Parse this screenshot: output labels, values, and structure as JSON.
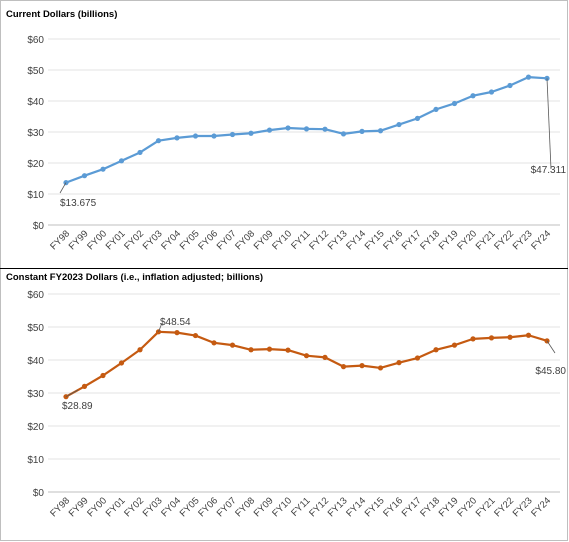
{
  "chart_data": [
    {
      "type": "line",
      "title": "Current Dollars (billions)",
      "categories": [
        "FY98",
        "FY99",
        "FY00",
        "FY01",
        "FY02",
        "FY03",
        "FY04",
        "FY05",
        "FY06",
        "FY07",
        "FY08",
        "FY09",
        "FY10",
        "FY11",
        "FY12",
        "FY13",
        "FY14",
        "FY15",
        "FY16",
        "FY17",
        "FY18",
        "FY19",
        "FY20",
        "FY21",
        "FY22",
        "FY23",
        "FY24"
      ],
      "series": [
        {
          "values": [
            13.675,
            15.9,
            18.0,
            20.7,
            23.4,
            27.2,
            28.1,
            28.7,
            28.7,
            29.2,
            29.6,
            30.6,
            31.3,
            31.0,
            30.9,
            29.4,
            30.2,
            30.4,
            32.4,
            34.4,
            37.3,
            39.2,
            41.7,
            42.9,
            45.0,
            47.7,
            47.311
          ],
          "color": "#5b9bd5"
        }
      ],
      "ylim": [
        0,
        60
      ],
      "yticks": [
        "$0",
        "$10",
        "$20",
        "$30",
        "$40",
        "$50",
        "$60"
      ],
      "grid": true,
      "annotations": [
        {
          "label": "$13.675",
          "index": 0
        },
        {
          "label": "$47.311",
          "index": 26
        }
      ]
    },
    {
      "type": "line",
      "title": "Constant FY2023 Dollars (i.e., inflation adjusted; billions)",
      "categories": [
        "FY98",
        "FY99",
        "FY00",
        "FY01",
        "FY02",
        "FY03",
        "FY04",
        "FY05",
        "FY06",
        "FY07",
        "FY08",
        "FY09",
        "FY10",
        "FY11",
        "FY12",
        "FY13",
        "FY14",
        "FY15",
        "FY16",
        "FY17",
        "FY18",
        "FY19",
        "FY20",
        "FY21",
        "FY22",
        "FY23",
        "FY24"
      ],
      "series": [
        {
          "values": [
            28.89,
            32.0,
            35.3,
            39.1,
            43.1,
            48.54,
            48.3,
            47.4,
            45.2,
            44.5,
            43.1,
            43.3,
            43.0,
            41.3,
            40.8,
            38.0,
            38.3,
            37.6,
            39.2,
            40.6,
            43.1,
            44.5,
            46.4,
            46.7,
            46.9,
            47.5,
            45.8
          ],
          "color": "#c55a11"
        }
      ],
      "ylim": [
        0,
        60
      ],
      "yticks": [
        "$0",
        "$10",
        "$20",
        "$30",
        "$40",
        "$50",
        "$60"
      ],
      "grid": true,
      "annotations": [
        {
          "label": "$28.89",
          "index": 0
        },
        {
          "label": "$48.54",
          "index": 5
        },
        {
          "label": "$45.80",
          "index": 26
        }
      ]
    }
  ]
}
